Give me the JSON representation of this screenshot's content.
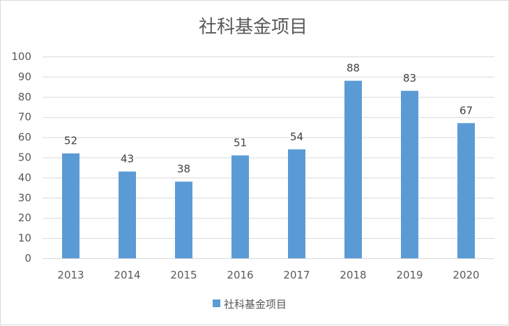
{
  "chart_data": {
    "type": "bar",
    "title": "社科基金项目",
    "categories": [
      "2013",
      "2014",
      "2015",
      "2016",
      "2017",
      "2018",
      "2019",
      "2020"
    ],
    "series": [
      {
        "name": "社科基金项目",
        "values": [
          52,
          43,
          38,
          51,
          54,
          88,
          83,
          67
        ],
        "color": "#5b9bd5"
      }
    ],
    "xlabel": "",
    "ylabel": "",
    "ylim": [
      0,
      100
    ],
    "yticks": [
      0,
      10,
      20,
      30,
      40,
      50,
      60,
      70,
      80,
      90,
      100
    ],
    "grid": true,
    "gridColor": "#d9d9d9",
    "dataLabels": true,
    "legend": "bottom"
  }
}
